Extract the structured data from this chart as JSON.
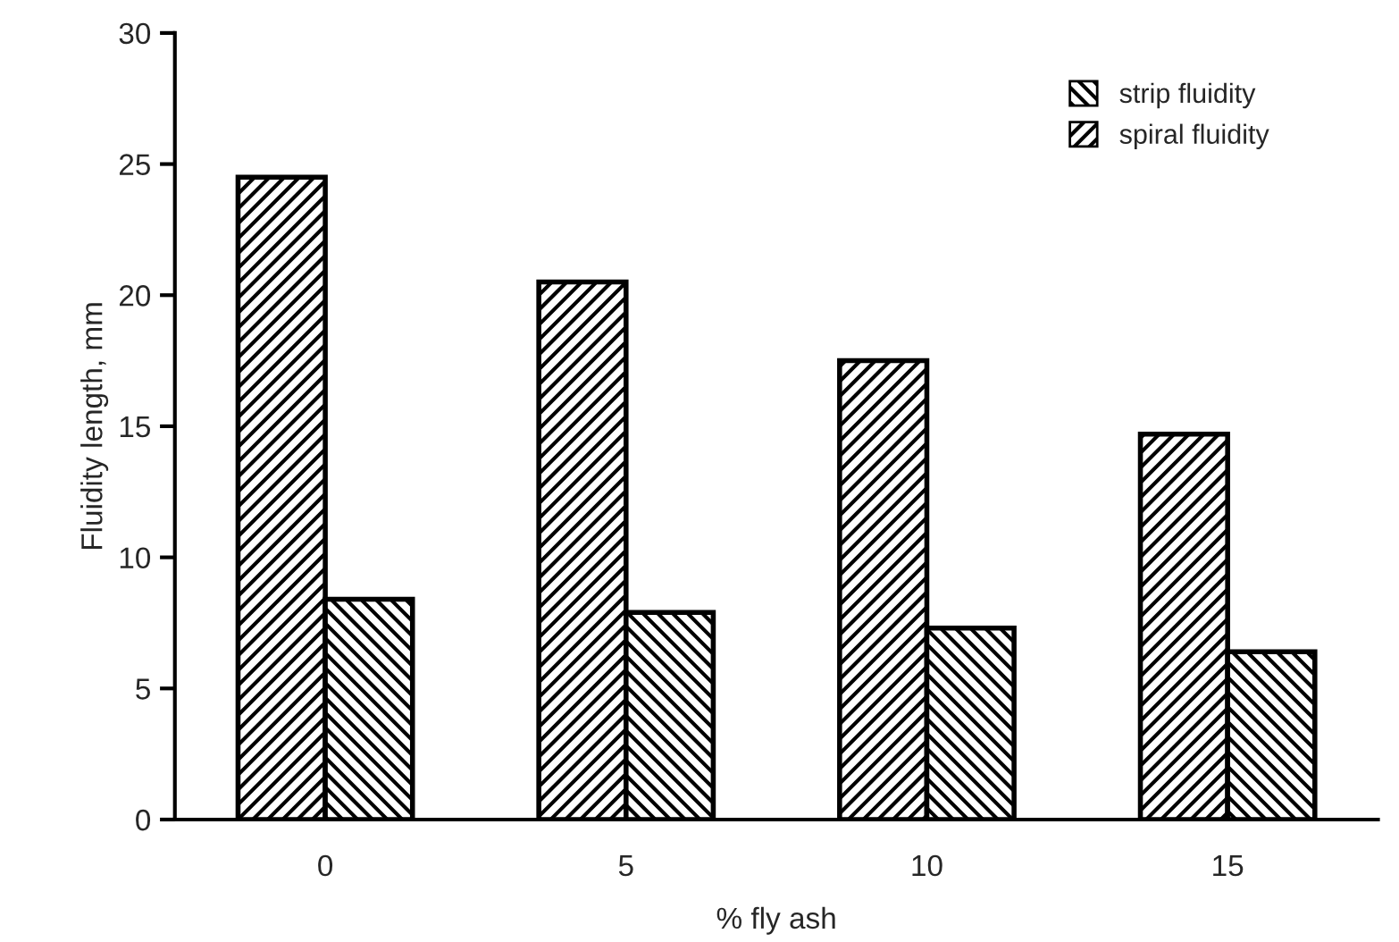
{
  "chart_data": {
    "type": "bar",
    "xlabel": "% fly ash",
    "ylabel": "Fluidity length, mm",
    "categories": [
      "0",
      "5",
      "10",
      "15"
    ],
    "series": [
      {
        "name": "spiral fluidity",
        "color": "#000000",
        "values": [
          24.5,
          20.5,
          17.5,
          14.7
        ]
      },
      {
        "name": "strip fluidity",
        "color": "#000000",
        "values": [
          8.4,
          7.9,
          7.3,
          6.4
        ]
      }
    ],
    "ylim": [
      0,
      30
    ],
    "yticks": [
      0,
      5,
      10,
      15,
      20,
      25,
      30
    ],
    "grid": false,
    "legend": "top right"
  }
}
